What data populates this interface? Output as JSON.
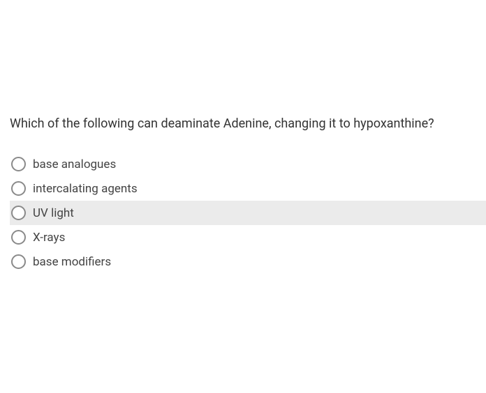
{
  "question": {
    "text": "Which of the following can deaminate Adenine, changing it to hypoxanthine?"
  },
  "options": [
    {
      "label": "base analogues",
      "highlighted": false
    },
    {
      "label": "intercalating agents",
      "highlighted": false
    },
    {
      "label": "UV light",
      "highlighted": true
    },
    {
      "label": "X-rays",
      "highlighted": false
    },
    {
      "label": "base modifiers",
      "highlighted": false
    }
  ],
  "colors": {
    "background": "#ffffff",
    "highlight": "#ebebeb",
    "text": "#333333",
    "optionText": "#444444",
    "radioBorder": "#8a8a8a"
  }
}
